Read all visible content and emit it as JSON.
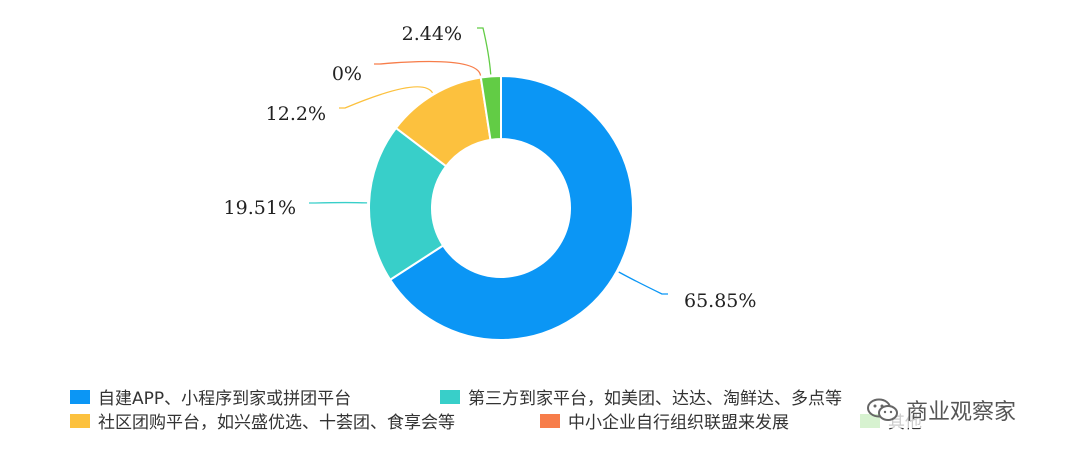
{
  "chart_data": {
    "type": "pie",
    "variant": "donut",
    "slices": [
      {
        "label": "自建APP、小程序到家或拼团平台",
        "value": 65.85,
        "value_label": "65.85%",
        "color": "#0b96f5"
      },
      {
        "label": "第三方到家平台，如美团、达达、淘鲜达、多点等",
        "value": 19.51,
        "value_label": "19.51%",
        "color": "#38cfc9"
      },
      {
        "label": "社区团购平台，如兴盛优选、十荟团、食享会等",
        "value": 12.2,
        "value_label": "12.2%",
        "color": "#fcc13e"
      },
      {
        "label": "中小企业自行组织联盟来发展",
        "value": 0,
        "value_label": "0%",
        "color": "#f77d4a"
      },
      {
        "label": "其他",
        "value": 2.44,
        "value_label": "2.44%",
        "color": "#62cc45"
      }
    ],
    "legend_position": "bottom"
  },
  "watermark": {
    "text": "商业观察家",
    "icon": "wechat-icon"
  }
}
